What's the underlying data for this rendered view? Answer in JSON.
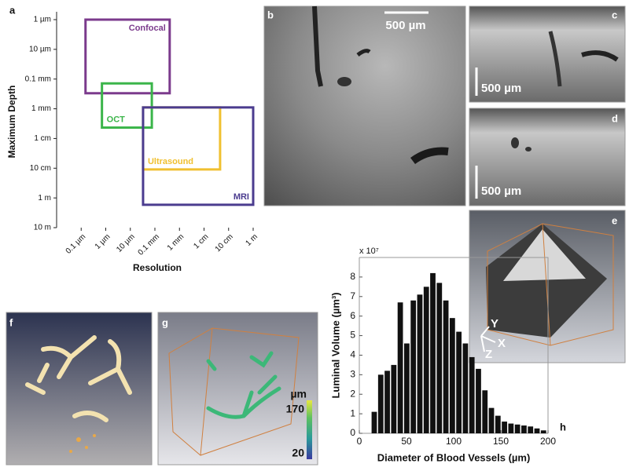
{
  "panel_labels": [
    "a",
    "b",
    "c",
    "d",
    "e",
    "f",
    "g",
    "h"
  ],
  "chart_data": [
    {
      "type": "range-box",
      "xlabel": "Resolution",
      "ylabel": "Maximum Depth",
      "xscale": "log",
      "yscale": "log",
      "y_inverted": true,
      "xlim": [
        1e-08,
        1
      ],
      "ylim": [
        1e-06,
        10
      ],
      "xticks": [
        {
          "value": 1e-07,
          "label": "0.1 µm"
        },
        {
          "value": 1e-06,
          "label": "1 µm"
        },
        {
          "value": 1e-05,
          "label": "10 µm"
        },
        {
          "value": 0.0001,
          "label": "0.1 mm"
        },
        {
          "value": 0.001,
          "label": "1 mm"
        },
        {
          "value": 0.01,
          "label": "1 cm"
        },
        {
          "value": 0.1,
          "label": "10 cm"
        },
        {
          "value": 1,
          "label": "1 m"
        }
      ],
      "yticks": [
        {
          "value": 1e-06,
          "label": "1 µm"
        },
        {
          "value": 1e-05,
          "label": "10 µm"
        },
        {
          "value": 0.0001,
          "label": "0.1 mm"
        },
        {
          "value": 0.001,
          "label": "1 mm"
        },
        {
          "value": 0.01,
          "label": "1 cm"
        },
        {
          "value": 0.1,
          "label": "10 cm"
        },
        {
          "value": 1,
          "label": "1 m"
        },
        {
          "value": 10,
          "label": "10 m"
        }
      ],
      "series": [
        {
          "name": "Confocal",
          "color": "#7b3a8c",
          "resolution": [
            1.5e-07,
            0.0004
          ],
          "depth": [
            1e-06,
            0.0003
          ],
          "label_position": "top-right"
        },
        {
          "name": "OCT",
          "color": "#3bb54a",
          "resolution": [
            7e-07,
            7.5e-05
          ],
          "depth": [
            0.00014,
            0.0043
          ],
          "label_position": "bottom-left"
        },
        {
          "name": "Ultrasound",
          "color": "#f0c030",
          "resolution": [
            3.3e-05,
            0.045
          ],
          "depth": [
            0.0009,
            0.11
          ],
          "label_position": "bottom-left"
        },
        {
          "name": "MRI",
          "color": "#4b3c8f",
          "resolution": [
            3.3e-05,
            1
          ],
          "depth": [
            0.0009,
            1.7
          ],
          "label_position": "bottom-right"
        }
      ]
    },
    {
      "type": "histogram",
      "ylabel": "Luminal Volume (µm³)",
      "xlabel": "Diameter of Blood Vessels (µm)",
      "y_multiplier": "x 10⁷",
      "color": "#111111",
      "bins": [
        13,
        19.9,
        26.8,
        33.7,
        40.6,
        47.5,
        54.4,
        61.3,
        68.2,
        75.1,
        82,
        88.9,
        95.8,
        102.7,
        109.6,
        116.5,
        123.4,
        130.3,
        137.2,
        144.1,
        151,
        157.9,
        164.8,
        171.7,
        178.6,
        185.5,
        192.4,
        199.3
      ],
      "values": [
        1.1,
        3.0,
        3.2,
        3.5,
        6.7,
        4.6,
        6.8,
        7.1,
        7.5,
        8.2,
        7.7,
        6.8,
        5.9,
        5.2,
        4.6,
        3.9,
        3.3,
        2.2,
        1.3,
        0.9,
        0.6,
        0.5,
        0.45,
        0.4,
        0.35,
        0.25,
        0.15
      ],
      "xlim": [
        0,
        200
      ],
      "ylim": [
        0,
        9
      ],
      "xticks": [
        0,
        50,
        100,
        150,
        200
      ],
      "yticks": [
        0,
        1,
        2,
        3,
        4,
        5,
        6,
        7,
        8
      ]
    }
  ],
  "images": {
    "b_scale_bar": "500 µm",
    "c_scale_bar": "500 µm",
    "d_scale_bar": "500 µm",
    "e_axes": [
      "Y",
      "X",
      "Z"
    ],
    "g_colorbar": {
      "unit": "µm",
      "ticks": [
        170,
        20
      ]
    }
  }
}
